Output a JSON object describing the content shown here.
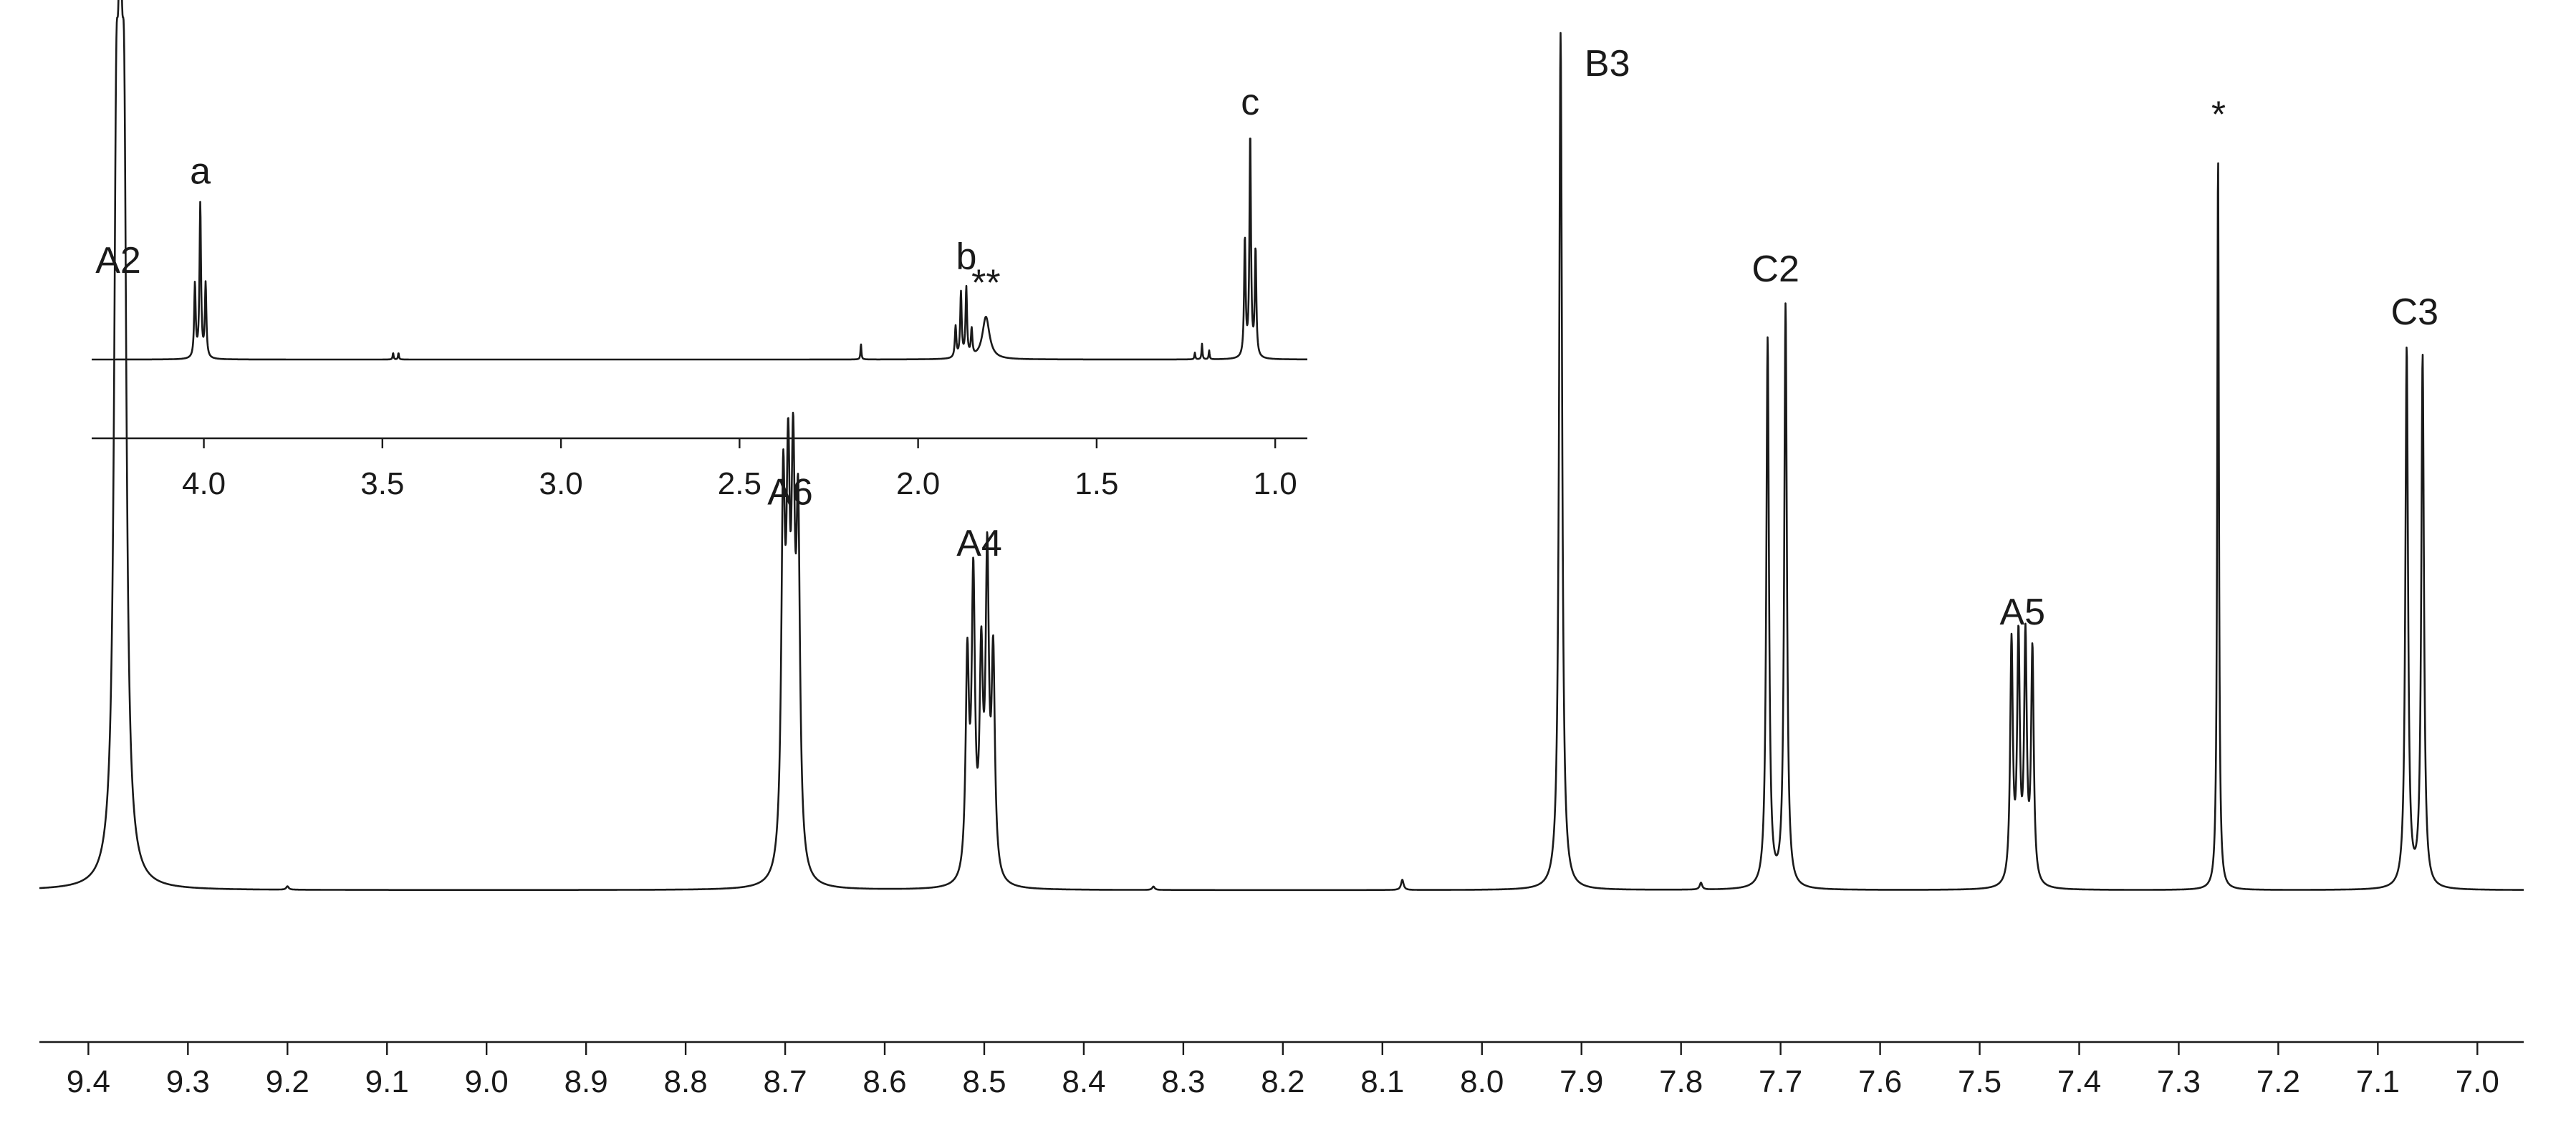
{
  "chart_data": [
    {
      "id": "main",
      "type": "line",
      "title": "",
      "xlabel": "",
      "ylabel": "",
      "x_reversed": true,
      "xlim": [
        9.46,
        6.97
      ],
      "grid": false,
      "ticks": [
        9.4,
        9.3,
        9.2,
        9.1,
        9.0,
        8.9,
        8.8,
        8.7,
        8.6,
        8.5,
        8.4,
        8.3,
        8.2,
        8.1,
        8.0,
        7.9,
        7.8,
        7.7,
        7.6,
        7.5,
        7.4,
        7.3,
        7.2,
        7.1,
        7.0
      ],
      "tick_labels": [
        "9.4",
        "9.3",
        "9.2",
        "9.1",
        "9.0",
        "8.9",
        "8.8",
        "8.7",
        "8.6",
        "8.5",
        "8.4",
        "8.3",
        "8.2",
        "8.1",
        "8.0",
        "7.9",
        "7.8",
        "7.7",
        "7.6",
        "7.5",
        "7.4",
        "7.3",
        "7.2",
        "7.1",
        "7.0"
      ],
      "peaks": [
        {
          "label": "A2",
          "shift": 9.37,
          "lines": [
            [
              9.372,
              0.68
            ],
            [
              9.368,
              0.69
            ],
            [
              9.364,
              0.68
            ]
          ],
          "width": 0.0028
        },
        {
          "label": "A6",
          "shift": 8.695,
          "lines": [
            [
              8.702,
              0.42
            ],
            [
              8.697,
              0.4
            ],
            [
              8.692,
              0.41
            ],
            [
              8.687,
              0.39
            ]
          ],
          "width": 0.0022
        },
        {
          "label": "A4",
          "shift": 8.505,
          "lines": [
            [
              8.517,
              0.25
            ],
            [
              8.511,
              0.34
            ],
            [
              8.503,
              0.24
            ],
            [
              8.497,
              0.36
            ],
            [
              8.491,
              0.25
            ]
          ],
          "width": 0.002
        },
        {
          "label": "B3",
          "shift": 7.92,
          "lines": [
            [
              7.921,
              1.0
            ]
          ],
          "width": 0.0018
        },
        {
          "label": "C2",
          "shift": 7.705,
          "lines": [
            [
              7.713,
              0.64
            ],
            [
              7.695,
              0.68
            ]
          ],
          "width": 0.0016
        },
        {
          "label": "A5",
          "shift": 7.457,
          "lines": [
            [
              7.468,
              0.28
            ],
            [
              7.461,
              0.28
            ],
            [
              7.454,
              0.28
            ],
            [
              7.447,
              0.27
            ]
          ],
          "width": 0.0016
        },
        {
          "label": "*",
          "shift": 7.26,
          "lines": [
            [
              7.2605,
              0.86
            ]
          ],
          "width": 0.001
        },
        {
          "label": "C3",
          "shift": 7.063,
          "lines": [
            [
              7.071,
              0.63
            ],
            [
              7.055,
              0.62
            ]
          ],
          "width": 0.0016
        }
      ],
      "minor_features": [
        [
          9.2,
          0.004
        ],
        [
          8.33,
          0.004
        ],
        [
          8.08,
          0.012
        ],
        [
          7.78,
          0.008
        ]
      ]
    },
    {
      "id": "inset",
      "type": "line",
      "title": "",
      "xlabel": "",
      "ylabel": "",
      "x_reversed": true,
      "xlim": [
        4.3,
        0.9
      ],
      "grid": false,
      "ticks": [
        4.0,
        3.5,
        3.0,
        2.5,
        2.0,
        1.5,
        1.0
      ],
      "tick_labels": [
        "4.0",
        "3.5",
        "3.0",
        "2.5",
        "2.0",
        "1.5",
        "1.0"
      ],
      "peaks": [
        {
          "label": "a",
          "shift": 4.01,
          "lines": [
            [
              4.025,
              0.33
            ],
            [
              4.01,
              0.69
            ],
            [
              3.995,
              0.33
            ]
          ],
          "width": 0.0025
        },
        {
          "label": "b",
          "shift": 1.865,
          "lines": [
            [
              1.895,
              0.14
            ],
            [
              1.88,
              0.29
            ],
            [
              1.865,
              0.31
            ],
            [
              1.85,
              0.12
            ]
          ],
          "width": 0.0025
        },
        {
          "label": "**",
          "shift": 1.81,
          "lines": [
            [
              1.81,
              0.19
            ]
          ],
          "width": 0.012
        },
        {
          "label": "c",
          "shift": 1.07,
          "lines": [
            [
              1.085,
              0.53
            ],
            [
              1.07,
              1.0
            ],
            [
              1.055,
              0.48
            ]
          ],
          "width": 0.0025
        }
      ],
      "minor_features": [
        [
          3.47,
          0.03
        ],
        [
          3.455,
          0.03
        ],
        [
          2.16,
          0.07
        ],
        [
          1.225,
          0.03
        ],
        [
          1.205,
          0.07
        ],
        [
          1.185,
          0.04
        ]
      ]
    }
  ]
}
